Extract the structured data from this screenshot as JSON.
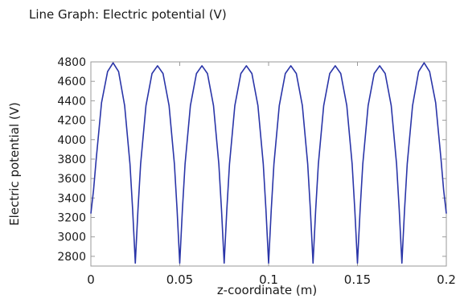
{
  "chart_data": {
    "type": "line",
    "title": "Line Graph: Electric potential (V)",
    "xlabel": "z-coordinate (m)",
    "ylabel": "Electric potential (V)",
    "xlim": [
      0,
      0.2
    ],
    "ylim": [
      2700,
      4800
    ],
    "x_ticks": [
      0,
      0.05,
      0.1,
      0.15,
      0.2
    ],
    "x_tick_labels": [
      "0",
      "0.05",
      "0.1",
      "0.15",
      "0.2"
    ],
    "y_ticks": [
      2800,
      3000,
      3200,
      3400,
      3600,
      3800,
      4000,
      4200,
      4400,
      4600,
      4800
    ],
    "y_tick_labels": [
      "2800",
      "3000",
      "3200",
      "3400",
      "3600",
      "3800",
      "4000",
      "4200",
      "4400",
      "4600",
      "4800"
    ],
    "grid": false,
    "color": "#2a35a8",
    "series": [
      {
        "x": [
          0,
          0.0015,
          0.003,
          0.006,
          0.0094,
          0.0125,
          0.0156,
          0.019,
          0.022,
          0.0235,
          0.025,
          0.0265,
          0.028,
          0.031,
          0.0344,
          0.0375,
          0.0406,
          0.044,
          0.047,
          0.0485,
          0.05,
          0.0515,
          0.053,
          0.056,
          0.0594,
          0.0625,
          0.0656,
          0.069,
          0.072,
          0.0735,
          0.075,
          0.0765,
          0.078,
          0.081,
          0.0844,
          0.0875,
          0.0906,
          0.094,
          0.097,
          0.0985,
          0.1,
          0.1015,
          0.103,
          0.106,
          0.1094,
          0.1125,
          0.1156,
          0.119,
          0.122,
          0.1235,
          0.125,
          0.1265,
          0.128,
          0.131,
          0.1344,
          0.1375,
          0.1406,
          0.144,
          0.147,
          0.1485,
          0.15,
          0.1515,
          0.153,
          0.156,
          0.1594,
          0.1625,
          0.1656,
          0.169,
          0.172,
          0.1735,
          0.175,
          0.1765,
          0.178,
          0.181,
          0.1844,
          0.1875,
          0.1906,
          0.194,
          0.197,
          0.1985,
          0.2
        ],
        "y": [
          3240,
          3480,
          3800,
          4380,
          4700,
          4790,
          4700,
          4350,
          3750,
          3280,
          2730,
          3280,
          3750,
          4350,
          4680,
          4760,
          4680,
          4350,
          3750,
          3280,
          2730,
          3280,
          3750,
          4350,
          4680,
          4760,
          4680,
          4350,
          3750,
          3280,
          2730,
          3280,
          3750,
          4350,
          4680,
          4760,
          4680,
          4350,
          3750,
          3280,
          2730,
          3280,
          3750,
          4350,
          4680,
          4760,
          4680,
          4350,
          3750,
          3280,
          2730,
          3280,
          3750,
          4350,
          4680,
          4760,
          4680,
          4350,
          3750,
          3280,
          2730,
          3280,
          3750,
          4350,
          4680,
          4760,
          4680,
          4350,
          3750,
          3280,
          2730,
          3280,
          3750,
          4350,
          4700,
          4790,
          4700,
          4380,
          3800,
          3480,
          3240
        ]
      }
    ]
  }
}
